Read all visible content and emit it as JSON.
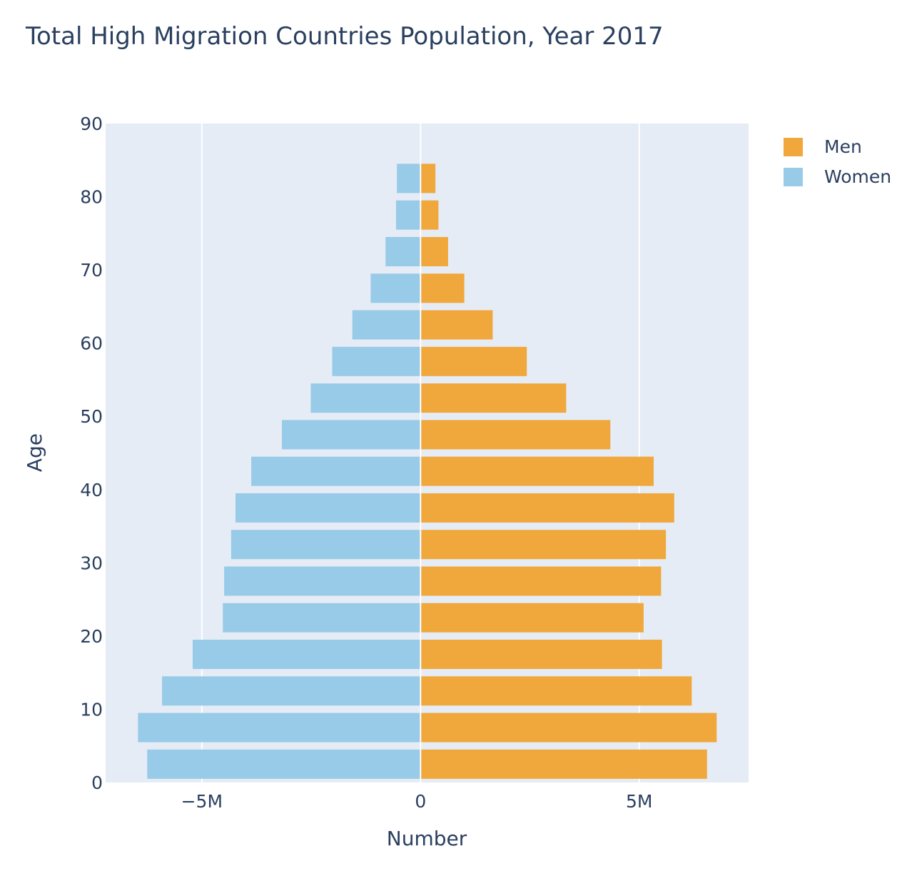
{
  "chart_data": {
    "type": "bar",
    "orientation": "horizontal",
    "title": "Total High Migration Countries Population, Year 2017",
    "xlabel": "Number",
    "ylabel": "Age",
    "xlim": [
      -7200000,
      7500000
    ],
    "ylim": [
      0,
      90
    ],
    "x_ticks": [
      {
        "value": -5000000,
        "label": "−5M"
      },
      {
        "value": 0,
        "label": "0"
      },
      {
        "value": 5000000,
        "label": "5M"
      }
    ],
    "y_ticks": [
      0,
      10,
      20,
      30,
      40,
      50,
      60,
      70,
      80,
      90
    ],
    "bar_width": 4,
    "age_groups": [
      2.5,
      7.5,
      12.5,
      17.5,
      22.5,
      27.5,
      32.5,
      37.5,
      42.5,
      47.5,
      52.5,
      57.5,
      62.5,
      67.5,
      72.5,
      77.5,
      82.5
    ],
    "series": [
      {
        "name": "Men",
        "color": "#f0a83c",
        "values": [
          6550000,
          6770000,
          6200000,
          5520000,
          5100000,
          5500000,
          5610000,
          5800000,
          5330000,
          4340000,
          3330000,
          2430000,
          1650000,
          1000000,
          630000,
          410000,
          340000
        ]
      },
      {
        "name": "Women",
        "color": "#98cbe8",
        "values": [
          -6250000,
          -6460000,
          -5910000,
          -5210000,
          -4520000,
          -4490000,
          -4330000,
          -4230000,
          -3870000,
          -3170000,
          -2510000,
          -2020000,
          -1560000,
          -1140000,
          -800000,
          -560000,
          -540000
        ]
      }
    ],
    "plot_background": "#e5ecf6",
    "grid": true,
    "legend_position": "top-right"
  }
}
